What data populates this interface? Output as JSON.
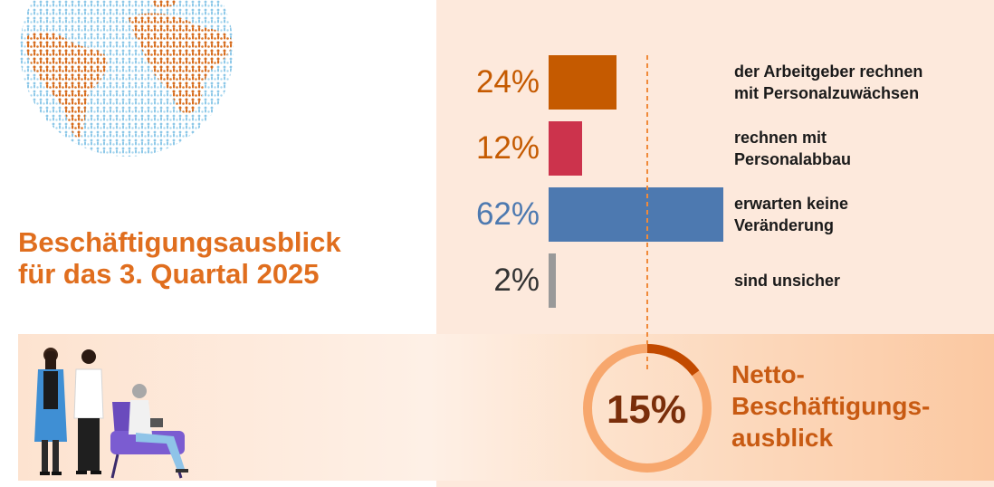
{
  "title": {
    "line1": "Beschäftigungsausblick",
    "line2": "für das 3. Quartal 2025"
  },
  "colors": {
    "title": "#e06e1e",
    "increase": "#c55a00",
    "decrease": "#cc334c",
    "unchanged": "#4d79b0",
    "unsure": "#999999",
    "panel": "#fde9dc",
    "ring": "#c24a00"
  },
  "chart_data": {
    "type": "bar",
    "orientation": "horizontal",
    "categories": [
      "der Arbeitgeber rechnen mit Personalzuwächsen",
      "rechnen mit Personalabbau",
      "erwarten keine Veränderung",
      "sind unsicher"
    ],
    "values": [
      24,
      12,
      62,
      2
    ],
    "value_labels": [
      "24%",
      "12%",
      "62%",
      "2%"
    ],
    "unit": "%",
    "bars": [
      {
        "label": "24%",
        "value": 24,
        "desc_line1": "der Arbeitgeber rechnen",
        "desc_line2": "mit Personalzuwächsen",
        "color": "#c55a00",
        "label_color": "#c55a00"
      },
      {
        "label": "12%",
        "value": 12,
        "desc_line1": "rechnen mit",
        "desc_line2": "Personalabbau",
        "color": "#cc334c",
        "label_color": "#c55a00"
      },
      {
        "label": "62%",
        "value": 62,
        "desc_line1": "erwarten keine",
        "desc_line2": "Veränderung",
        "color": "#4d79b0",
        "label_color": "#4d79b0"
      },
      {
        "label": "2%",
        "value": 2,
        "desc_line1": "sind unsicher",
        "desc_line2": "",
        "color": "#999999",
        "label_color": "#333333"
      }
    ]
  },
  "net_outlook": {
    "value": 15,
    "value_label": "15%",
    "label_line1": "Netto-",
    "label_line2": "Beschäftigungs-",
    "label_line3": "ausblick"
  },
  "icons": {
    "globe": "globe-of-people-icon",
    "people": "people-group-illustration"
  }
}
